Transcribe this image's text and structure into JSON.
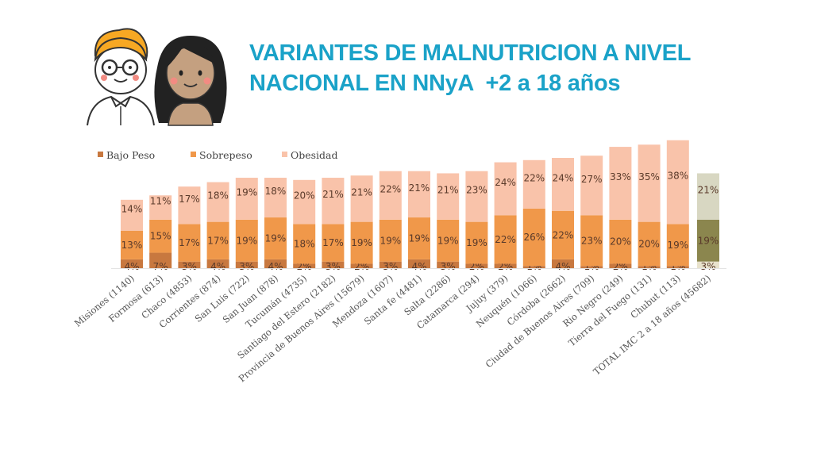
{
  "header": {
    "title_lines": [
      "VARIANTES DE MALNUTRICION A NIVEL",
      "NACIONAL EN NNyA  +2 a 18 años"
    ]
  },
  "illustration": {
    "items": [
      "boy-with-glasses-avatar",
      "girl-avatar"
    ]
  },
  "colors": {
    "title": "#1aa2c8",
    "bajo_peso": "#c8783f",
    "sobrepeso": "#f0984a",
    "obesidad": "#f9c3aa",
    "total_bajo_peso": "#e8e2cc",
    "total_sobrepeso": "#8b864e",
    "total_obesidad": "#d8d7c2"
  },
  "chart_data": {
    "type": "bar",
    "stacked": true,
    "title": "VARIANTES DE MALNUTRICION A NIVEL NACIONAL EN NNyA +2 a 18 años",
    "xlabel": "",
    "ylabel": "",
    "unit": "%",
    "grid": false,
    "legend_position": "top-left",
    "categories": [
      "Misiones (1140)",
      "Formosa (613)",
      "Chaco (4853)",
      "Corrientes (874)",
      "San Luis (722)",
      "San Juan (878)",
      "Tucumán (4735)",
      "Santiago del Estero (2182)",
      "Provincia de Buenos Aires (15679)",
      "Mendoza (1607)",
      "Santa fe (4481)",
      "Salta (2286)",
      "Catamarca (294)",
      "Jujuy (379)",
      "Neuquén (1066)",
      "Córdoba (2662)",
      "Ciudad de Buenos Aires (709)",
      "Rio Negro (249)",
      "Tierra del Fuego (131)",
      "Chubut (113)",
      "TOTAL IMC 2 a 18 años (45682)"
    ],
    "series": [
      {
        "name": "Bajo Peso",
        "values": [
          4,
          7,
          3,
          4,
          3,
          4,
          2,
          3,
          2,
          3,
          4,
          3,
          2,
          2,
          1,
          4,
          1,
          2,
          1,
          1,
          3
        ]
      },
      {
        "name": "Sobrepeso",
        "values": [
          13,
          15,
          17,
          17,
          19,
          19,
          18,
          17,
          19,
          19,
          19,
          19,
          19,
          22,
          26,
          22,
          23,
          20,
          20,
          19,
          19
        ]
      },
      {
        "name": "Obesidad",
        "values": [
          14,
          11,
          17,
          18,
          19,
          18,
          20,
          21,
          21,
          22,
          21,
          21,
          23,
          24,
          22,
          24,
          27,
          33,
          35,
          38,
          21
        ]
      }
    ],
    "data_label_format": "{v}%",
    "ylim": [
      0,
      60
    ]
  }
}
